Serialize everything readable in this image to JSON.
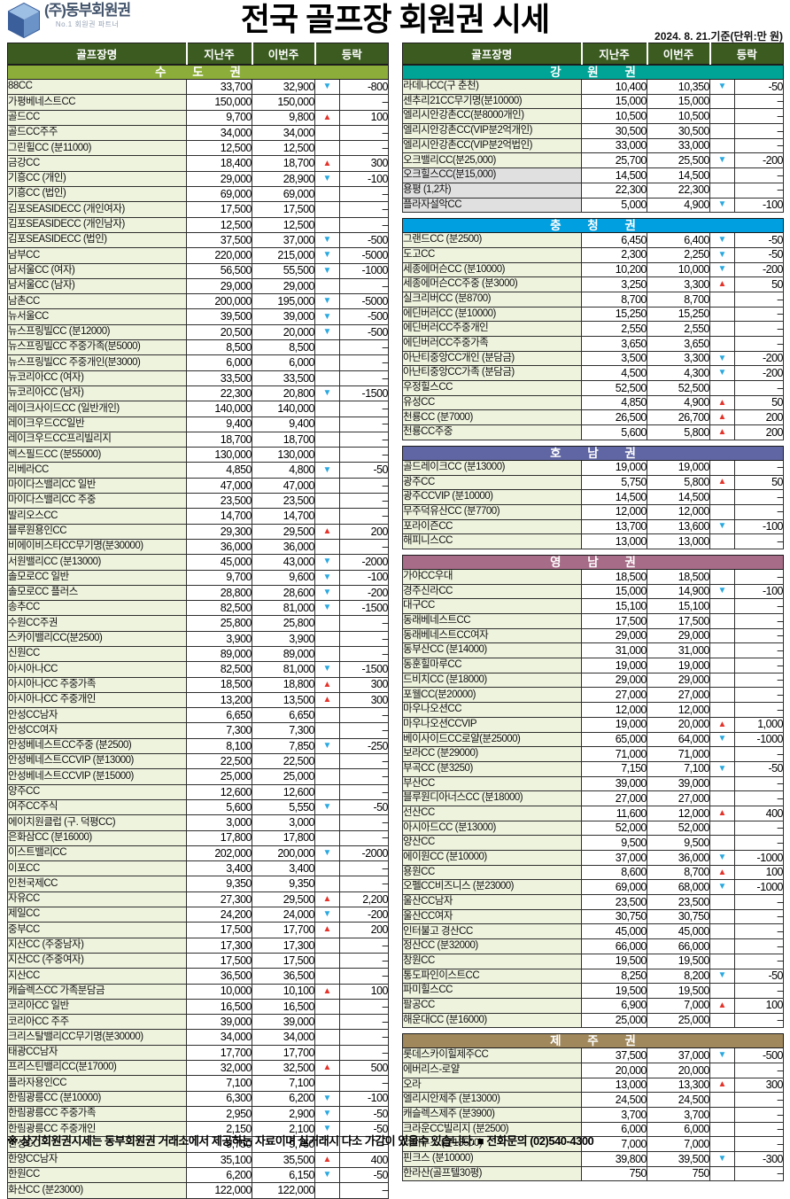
{
  "header": {
    "logo_title": "(주)동부회원권",
    "logo_subtitle": "No.1 회원권 파트너",
    "title": "전국 골프장 회원권 시세",
    "date_note": "2024. 8. 21.기준(단위:만 원)"
  },
  "columns": [
    "골프장명",
    "지난주",
    "이번주",
    "등락"
  ],
  "icons": {
    "up": "▲",
    "down": "▼"
  },
  "colors": {
    "column_header_bg": "#3b5b20",
    "up_red": "#e5332a",
    "down_blue": "#2aa9e0",
    "name_cell_bg": "#eef3de",
    "name_cell_gray_bg": "#e0e0e0"
  },
  "left_sections": [
    {
      "title": "수 도 권",
      "color": "#8cad39",
      "rows": [
        [
          "88CC",
          "33,700",
          "32,900",
          "down",
          "-800"
        ],
        [
          "가평베네스트CC",
          "150,000",
          "150,000",
          "",
          "–"
        ],
        [
          "골드CC",
          "9,700",
          "9,800",
          "up",
          "100"
        ],
        [
          "골드CC주주",
          "34,000",
          "34,000",
          "",
          "–"
        ],
        [
          "그린힐CC (분11000)",
          "12,500",
          "12,500",
          "",
          "–"
        ],
        [
          "금강CC",
          "18,400",
          "18,700",
          "up",
          "300"
        ],
        [
          "기흥CC (개인)",
          "29,000",
          "28,900",
          "down",
          "-100"
        ],
        [
          "기흥CC (법인)",
          "69,000",
          "69,000",
          "",
          "–"
        ],
        [
          "김포SEASIDECC (개인여자)",
          "17,500",
          "17,500",
          "",
          "–"
        ],
        [
          "김포SEASIDECC (개인남자)",
          "12,500",
          "12,500",
          "",
          "–"
        ],
        [
          "김포SEASIDECC (법인)",
          "37,500",
          "37,000",
          "down",
          "-500"
        ],
        [
          "남부CC",
          "220,000",
          "215,000",
          "down",
          "-5000"
        ],
        [
          "남서울CC (여자)",
          "56,500",
          "55,500",
          "down",
          "-1000"
        ],
        [
          "남서울CC (남자)",
          "29,000",
          "29,000",
          "",
          "–"
        ],
        [
          "남촌CC",
          "200,000",
          "195,000",
          "down",
          "-5000"
        ],
        [
          "뉴서울CC",
          "39,500",
          "39,000",
          "down",
          "-500"
        ],
        [
          "뉴스프링빌CC (분12000)",
          "20,500",
          "20,000",
          "down",
          "-500"
        ],
        [
          "뉴스프링빌CC 주중가족(분5000)",
          "8,500",
          "8,500",
          "",
          "–"
        ],
        [
          "뉴스프링빌CC 주중개인(분3000)",
          "6,000",
          "6,000",
          "",
          "–"
        ],
        [
          "뉴코리아CC (여자)",
          "33,500",
          "33,500",
          "",
          "–"
        ],
        [
          "뉴코리아CC (남자)",
          "22,300",
          "20,800",
          "down",
          "-1500"
        ],
        [
          "레이크사이드CC (일반개인)",
          "140,000",
          "140,000",
          "",
          "–"
        ],
        [
          "레이크우드CC일반",
          "9,400",
          "9,400",
          "",
          "–"
        ],
        [
          "레이크우드CC프리빌리지",
          "18,700",
          "18,700",
          "",
          "–"
        ],
        [
          "렉스필드CC (분55000)",
          "130,000",
          "130,000",
          "",
          "–"
        ],
        [
          "리베라CC",
          "4,850",
          "4,800",
          "down",
          "-50"
        ],
        [
          "마이다스밸리CC 일반",
          "47,000",
          "47,000",
          "",
          "–"
        ],
        [
          "마이다스밸리CC 주중",
          "23,500",
          "23,500",
          "",
          "–"
        ],
        [
          "발리오스CC",
          "14,700",
          "14,700",
          "",
          "–"
        ],
        [
          "블루원용인CC",
          "29,300",
          "29,500",
          "up",
          "200"
        ],
        [
          "비에이비스타CC무기명(분30000)",
          "36,000",
          "36,000",
          "",
          "–"
        ],
        [
          "서원밸리CC (분13000)",
          "45,000",
          "43,000",
          "down",
          "-2000"
        ],
        [
          "솔모로CC 일반",
          "9,700",
          "9,600",
          "down",
          "-100"
        ],
        [
          "솔모로CC 플러스",
          "28,800",
          "28,600",
          "down",
          "-200"
        ],
        [
          "송추CC",
          "82,500",
          "81,000",
          "down",
          "-1500"
        ],
        [
          "수원CC주권",
          "25,800",
          "25,800",
          "",
          "–"
        ],
        [
          "스카이밸리CC(분2500)",
          "3,900",
          "3,900",
          "",
          "–"
        ],
        [
          "신원CC",
          "89,000",
          "89,000",
          "",
          "–"
        ],
        [
          "아시아나CC",
          "82,500",
          "81,000",
          "down",
          "-1500"
        ],
        [
          "아시아나CC 주중가족",
          "18,500",
          "18,800",
          "up",
          "300"
        ],
        [
          "아시아나CC 주중개인",
          "13,200",
          "13,500",
          "up",
          "300"
        ],
        [
          "안성CC남자",
          "6,650",
          "6,650",
          "",
          "–"
        ],
        [
          "안성CC여자",
          "7,300",
          "7,300",
          "",
          "–"
        ],
        [
          "안성베네스트CC주중 (분2500)",
          "8,100",
          "7,850",
          "down",
          "-250"
        ],
        [
          "안성베네스트CCVIP (분13000)",
          "22,500",
          "22,500",
          "",
          "–"
        ],
        [
          "안성베네스트CCVIP (분15000)",
          "25,000",
          "25,000",
          "",
          "–"
        ],
        [
          "양주CC",
          "12,600",
          "12,600",
          "",
          "–"
        ],
        [
          "여주CC주식",
          "5,600",
          "5,550",
          "down",
          "-50"
        ],
        [
          "에이치원클럽 (구. 덕평CC)",
          "3,000",
          "3,000",
          "",
          "–"
        ],
        [
          "은화삼CC (분16000)",
          "17,800",
          "17,800",
          "",
          "–"
        ],
        [
          "이스트밸리CC",
          "202,000",
          "200,000",
          "down",
          "-2000"
        ],
        [
          "이포CC",
          "3,400",
          "3,400",
          "",
          "–"
        ],
        [
          "인천국제CC",
          "9,350",
          "9,350",
          "",
          "–"
        ],
        [
          "자유CC",
          "27,300",
          "29,500",
          "up",
          "2,200"
        ],
        [
          "제일CC",
          "24,200",
          "24,000",
          "down",
          "-200"
        ],
        [
          "중부CC",
          "17,500",
          "17,700",
          "up",
          "200"
        ],
        [
          "지산CC (주중남자)",
          "17,300",
          "17,300",
          "",
          "–"
        ],
        [
          "지산CC (주중여자)",
          "17,500",
          "17,500",
          "",
          "–"
        ],
        [
          "지산CC",
          "36,500",
          "36,500",
          "",
          "–"
        ],
        [
          "캐슬렉스CC 가족분담금",
          "10,000",
          "10,100",
          "up",
          "100"
        ],
        [
          "코리아CC 일반",
          "16,500",
          "16,500",
          "",
          "–"
        ],
        [
          "코리아CC 주주",
          "39,000",
          "39,000",
          "",
          "–"
        ],
        [
          "크리스탈밸리CC무기명(분30000)",
          "34,000",
          "34,000",
          "",
          "–"
        ],
        [
          "태광CC남자",
          "17,700",
          "17,700",
          "",
          "–"
        ],
        [
          "프리스틴밸리CC(분17000)",
          "32,000",
          "32,500",
          "up",
          "500"
        ],
        [
          "플라자용인CC",
          "7,100",
          "7,100",
          "",
          "–"
        ],
        [
          "한림광릉CC (분10000)",
          "6,300",
          "6,200",
          "down",
          "-100"
        ],
        [
          "한림광릉CC 주중가족",
          "2,950",
          "2,900",
          "down",
          "-50"
        ],
        [
          "한림광릉CC 주중개인",
          "2,150",
          "2,100",
          "down",
          "-50"
        ],
        [
          "한성CC",
          "9,750",
          "9,750",
          "",
          "–"
        ],
        [
          "한양CC남자",
          "35,100",
          "35,500",
          "up",
          "400"
        ],
        [
          "한원CC",
          "6,200",
          "6,150",
          "down",
          "-50"
        ],
        [
          "화산CC (분23000)",
          "122,000",
          "122,000",
          "",
          "–"
        ]
      ]
    }
  ],
  "right_sections": [
    {
      "title": "강 원 권",
      "color": "#00a496",
      "rows": [
        [
          "라데나CC(구 춘천)",
          "10,400",
          "10,350",
          "down",
          "-50"
        ],
        [
          "센추리21CC무기명(분10000)",
          "15,000",
          "15,000",
          "",
          "–"
        ],
        [
          "엘리시안강촌CC(분8000개인)",
          "10,500",
          "10,500",
          "",
          "–"
        ],
        [
          "엘리시안강촌CC(VIP분2억개인)",
          "30,500",
          "30,500",
          "",
          "–"
        ],
        [
          "엘리시안강촌CC(VIP분2억법인)",
          "33,000",
          "33,000",
          "",
          "–"
        ],
        [
          "오크밸리CC(분25,000)",
          "25,700",
          "25,500",
          "down",
          "-200"
        ],
        [
          "오크힐스CC(분15,000)",
          "14,500",
          "14,500",
          "",
          "–",
          1
        ],
        [
          "용평 (1,2차)",
          "22,300",
          "22,300",
          "",
          "–",
          1
        ],
        [
          "플라자설악CC",
          "5,000",
          "4,900",
          "down",
          "-100",
          1
        ]
      ]
    },
    {
      "title": "충 청 권",
      "color": "#009fdf",
      "rows": [
        [
          "그랜드CC (분2500)",
          "6,450",
          "6,400",
          "down",
          "-50"
        ],
        [
          "도고CC",
          "2,300",
          "2,250",
          "down",
          "-50"
        ],
        [
          "세종에머슨CC (분10000)",
          "10,200",
          "10,000",
          "down",
          "-200"
        ],
        [
          "세종에머슨CC주중 (분3000)",
          "3,250",
          "3,300",
          "up",
          "50"
        ],
        [
          "실크리버CC (분8700)",
          "8,700",
          "8,700",
          "",
          "–"
        ],
        [
          "에딘버러CC (분10000)",
          "15,250",
          "15,250",
          "",
          "–"
        ],
        [
          "에딘버러CC주중개인",
          "2,550",
          "2,550",
          "",
          "–"
        ],
        [
          "에딘버러CC주중가족",
          "3,650",
          "3,650",
          "",
          "–"
        ],
        [
          "아난티중앙CC개인 (분담금)",
          "3,500",
          "3,300",
          "down",
          "-200"
        ],
        [
          "아난티중앙CC가족 (분담금)",
          "4,500",
          "4,300",
          "down",
          "-200"
        ],
        [
          "우정힐스CC",
          "52,500",
          "52,500",
          "",
          "–"
        ],
        [
          "유성CC",
          "4,850",
          "4,900",
          "up",
          "50"
        ],
        [
          "천룡CC (분7000)",
          "26,500",
          "26,700",
          "up",
          "200"
        ],
        [
          "천룡CC주중",
          "5,600",
          "5,800",
          "up",
          "200"
        ]
      ]
    },
    {
      "title": "호 남 권",
      "color": "#6066a3",
      "rows": [
        [
          "골드레이크CC (분13000)",
          "19,000",
          "19,000",
          "",
          "–"
        ],
        [
          "광주CC",
          "5,750",
          "5,800",
          "up",
          "50"
        ],
        [
          "광주CCVIP (분10000)",
          "14,500",
          "14,500",
          "",
          "–"
        ],
        [
          "무주덕유산CC (분7700)",
          "12,000",
          "12,000",
          "",
          "–"
        ],
        [
          "포라이즌CC",
          "13,700",
          "13,600",
          "down",
          "-100"
        ],
        [
          "해피니스CC",
          "13,000",
          "13,000",
          "",
          "–"
        ]
      ]
    },
    {
      "title": "영 남 권",
      "color": "#a76c87",
      "rows": [
        [
          "가야CC우대",
          "18,500",
          "18,500",
          "",
          "–"
        ],
        [
          "경주신라CC",
          "15,000",
          "14,900",
          "down",
          "-100"
        ],
        [
          "대구CC",
          "15,100",
          "15,100",
          "",
          "–"
        ],
        [
          "동래베네스트CC",
          "17,500",
          "17,500",
          "",
          "–"
        ],
        [
          "동래베네스트CC여자",
          "29,000",
          "29,000",
          "",
          "–"
        ],
        [
          "동부산CC (분14000)",
          "31,000",
          "31,000",
          "",
          "–"
        ],
        [
          "동훈힐마루CC",
          "19,000",
          "19,000",
          "",
          "–"
        ],
        [
          "드비치CC (분18000)",
          "29,000",
          "29,000",
          "",
          "–"
        ],
        [
          "포웰CC(분20000)",
          "27,000",
          "27,000",
          "",
          "–"
        ],
        [
          "마우나오션CC",
          "12,000",
          "12,000",
          "",
          "–"
        ],
        [
          "마우나오션CCVIP",
          "19,000",
          "20,000",
          "up",
          "1,000"
        ],
        [
          "베이사이드CC로얄(분25000)",
          "65,000",
          "64,000",
          "down",
          "-1000"
        ],
        [
          "보라CC (분29000)",
          "71,000",
          "71,000",
          "",
          "–"
        ],
        [
          "부곡CC (분3250)",
          "7,150",
          "7,100",
          "down",
          "-50"
        ],
        [
          "부산CC",
          "39,000",
          "39,000",
          "",
          "–"
        ],
        [
          "블루원디아너스CC (분18000)",
          "27,000",
          "27,000",
          "",
          "–"
        ],
        [
          "선산CC",
          "11,600",
          "12,000",
          "up",
          "400"
        ],
        [
          "아시아드CC (분13000)",
          "52,000",
          "52,000",
          "",
          "–"
        ],
        [
          "양산CC",
          "9,500",
          "9,500",
          "",
          "–"
        ],
        [
          "에이원CC (분10000)",
          "37,000",
          "36,000",
          "down",
          "-1000"
        ],
        [
          "용원CC",
          "8,600",
          "8,700",
          "up",
          "100"
        ],
        [
          "오펠CC비즈니스 (분23000)",
          "69,000",
          "68,000",
          "down",
          "-1000"
        ],
        [
          "울산CC남자",
          "23,500",
          "23,500",
          "",
          "–"
        ],
        [
          "울산CC여자",
          "30,750",
          "30,750",
          "",
          "–"
        ],
        [
          "인터불고 경산CC",
          "45,000",
          "45,000",
          "",
          "–"
        ],
        [
          "정산CC (분32000)",
          "66,000",
          "66,000",
          "",
          "–"
        ],
        [
          "창원CC",
          "19,500",
          "19,500",
          "",
          "–"
        ],
        [
          "통도파인이스트CC",
          "8,250",
          "8,200",
          "down",
          "-50"
        ],
        [
          "파미힐스CC",
          "19,500",
          "19,500",
          "",
          "–"
        ],
        [
          "팔공CC",
          "6,900",
          "7,000",
          "up",
          "100"
        ],
        [
          "해운대CC (분16000)",
          "25,000",
          "25,000",
          "",
          "–"
        ]
      ]
    },
    {
      "title": "제 주 권",
      "color": "#a0885c",
      "rows": [
        [
          "롯데스카이힐제주CC",
          "37,500",
          "37,000",
          "down",
          "-500"
        ],
        [
          "에버리스-로얄",
          "20,000",
          "20,000",
          "",
          "–"
        ],
        [
          "오라",
          "13,000",
          "13,300",
          "up",
          "300"
        ],
        [
          "엘리시안제주 (분13000)",
          "24,500",
          "24,500",
          "",
          "–"
        ],
        [
          "캐슬렉스제주 (분3900)",
          "3,700",
          "3,700",
          "",
          "–"
        ],
        [
          "크라운CC빌리지 (분2500)",
          "6,000",
          "6,000",
          "",
          "–"
        ],
        [
          "타미우스 (분13500)",
          "7,000",
          "7,000",
          "",
          "–"
        ],
        [
          "핀크스 (분10000)",
          "39,800",
          "39,500",
          "down",
          "-300"
        ],
        [
          "한라산(골프텔30평)",
          "750",
          "750",
          "",
          "–"
        ]
      ]
    }
  ],
  "footer": {
    "note": "※ 상기회원권시세는 동부회원권 거래소에서 제공하는 자료이며 실거래시 다소 가감이 있을수 있습니다.  ■ 전화문의 (02)540-4300"
  }
}
